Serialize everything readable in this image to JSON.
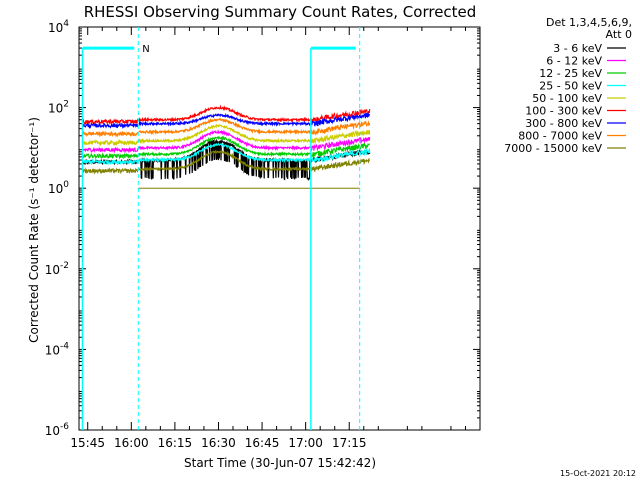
{
  "chart_data": {
    "type": "line",
    "title": "RHESSI Observing Summary Count Rates, Corrected",
    "xlabel": "Start Time (30-Jun-07 15:42:42)",
    "ylabel": "Corrected Count Rate (s⁻¹ detector⁻¹)",
    "y_scale": "log",
    "ylim": [
      1e-06,
      10000.0
    ],
    "xlim_minutes": [
      15.7,
      18.0
    ],
    "x_ticks": [
      {
        "label": "15:45",
        "t": 15.75
      },
      {
        "label": "16:00",
        "t": 16.0
      },
      {
        "label": "16:15",
        "t": 16.25
      },
      {
        "label": "16:30",
        "t": 16.5
      },
      {
        "label": "16:45",
        "t": 16.75
      },
      {
        "label": "17:00",
        "t": 17.0
      },
      {
        "label": "17:15",
        "t": 17.25
      }
    ],
    "y_ticks": [
      {
        "label_base": "10",
        "label_exp": "4",
        "v": 4
      },
      {
        "label_base": "10",
        "label_exp": "2",
        "v": 2
      },
      {
        "label_base": "10",
        "label_exp": "0",
        "v": 0
      },
      {
        "label_base": "10",
        "label_exp": "-2",
        "v": -2
      },
      {
        "label_base": "10",
        "label_exp": "-4",
        "v": -4
      },
      {
        "label_base": "10",
        "label_exp": "-6",
        "v": -6
      }
    ],
    "legend_header": [
      "Det 1,3,4,5,6,9,",
      "Att 0"
    ],
    "legend_position": "right",
    "series": [
      {
        "name": "3 - 6 keV",
        "color": "#000000",
        "base": 5.0,
        "peak": 15.0,
        "noisy": true
      },
      {
        "name": "6 - 12 keV",
        "color": "#ff00ff",
        "base": 10.0,
        "peak": 25.0
      },
      {
        "name": "12 - 25 keV",
        "color": "#00cc00",
        "base": 7.0,
        "peak": 18.0
      },
      {
        "name": "25 - 50 keV",
        "color": "#00ffff",
        "base": 5.0,
        "peak": 12.0
      },
      {
        "name": "50 - 100 keV",
        "color": "#cccc00",
        "base": 15.0,
        "peak": 35.0
      },
      {
        "name": "100 - 300 keV",
        "color": "#ff0000",
        "base": 50.0,
        "peak": 100.0
      },
      {
        "name": "300 - 800 keV",
        "color": "#0000ff",
        "base": 40.0,
        "peak": 65.0
      },
      {
        "name": "800 - 7000 keV",
        "color": "#ff8000",
        "base": 25.0,
        "peak": 50.0
      },
      {
        "name": "7000 - 15000 keV",
        "color": "#808000",
        "base": 3.0,
        "peak": 8.0
      }
    ],
    "night_flag": {
      "label": "N",
      "color": "#00ffff",
      "value": 3000.0
    },
    "night_intervals": [
      {
        "start": 15.72,
        "end": 16.04
      },
      {
        "start": 17.03,
        "end": 17.31
      }
    ],
    "dashed_markers": [
      16.04,
      17.31
    ],
    "solid_markers": [
      15.72,
      17.03
    ]
  },
  "footer": {
    "timestamp": "15-Oct-2021 20:12"
  }
}
